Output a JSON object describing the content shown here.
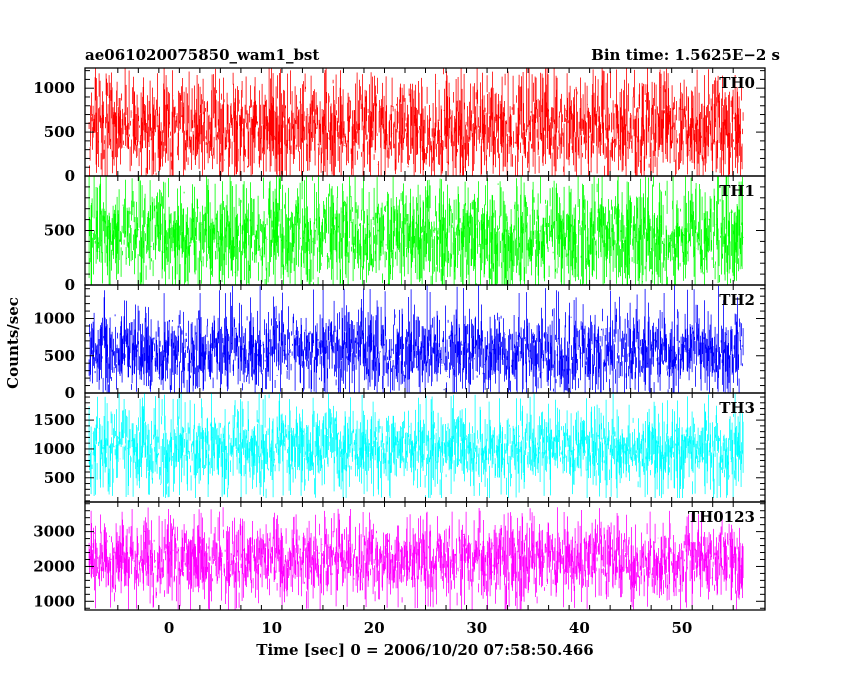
{
  "chart_data": {
    "type": "line",
    "title_left": "ae061020075850_wam1_bst",
    "title_right": "Bin time: 1.5625E−2 s",
    "xlabel": "Time [sec] 0 = 2006/10/20 07:58:50.466",
    "ylabel": "Counts/sec",
    "xlim": [
      -8.2,
      58.1
    ],
    "x_range": [
      -7.8,
      56.0
    ],
    "x_ticks": [
      0,
      10,
      20,
      30,
      40,
      50
    ],
    "x_tick_labels": [
      "0",
      "10",
      "20",
      "30",
      "40",
      "50"
    ],
    "series": [
      {
        "name": "TH0",
        "color": "#ff0000",
        "ylim": [
          0,
          1230
        ],
        "y_ticks": [
          0,
          500,
          1000
        ],
        "y_tick_labels": [
          "0",
          "500",
          "1000"
        ],
        "min": 0,
        "max": 1230,
        "mean": 540,
        "spread": 290
      },
      {
        "name": "TH1",
        "color": "#00ff00",
        "ylim": [
          0,
          1000
        ],
        "y_ticks": [
          0,
          500
        ],
        "y_tick_labels": [
          "0",
          "500"
        ],
        "min": 0,
        "max": 1000,
        "mean": 450,
        "spread": 240
      },
      {
        "name": "TH2",
        "color": "#0000ff",
        "ylim": [
          0,
          1450
        ],
        "y_ticks": [
          0,
          500,
          1000
        ],
        "y_tick_labels": [
          "0",
          "500",
          "1000"
        ],
        "min": 0,
        "max": 1450,
        "mean": 560,
        "spread": 280
      },
      {
        "name": "TH3",
        "color": "#00ffff",
        "ylim": [
          80,
          1970
        ],
        "y_ticks": [
          500,
          1000,
          1500
        ],
        "y_tick_labels": [
          "500",
          "1000",
          "1500"
        ],
        "min": 150,
        "max": 1970,
        "mean": 1000,
        "spread": 340
      },
      {
        "name": "TH0123",
        "color": "#ff00ff",
        "ylim": [
          750,
          3850
        ],
        "y_ticks": [
          1000,
          2000,
          3000
        ],
        "y_tick_labels": [
          "1000",
          "2000",
          "3000"
        ],
        "min": 750,
        "max": 3700,
        "mean": 2200,
        "spread": 550
      }
    ],
    "grid": false,
    "legend": "none"
  }
}
